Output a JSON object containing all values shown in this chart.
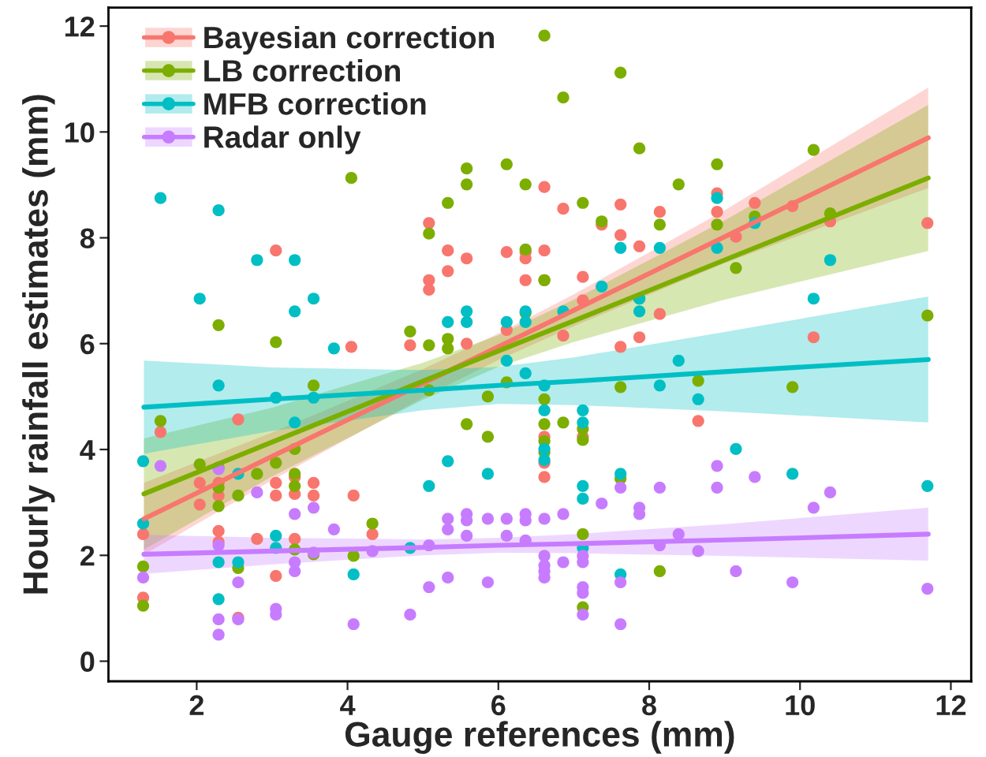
{
  "chart_data": {
    "type": "scatter",
    "xlabel": "Gauge references (mm)",
    "ylabel": "Hourly rainfall estimates (mm)",
    "xlim": [
      0.83,
      12.27
    ],
    "ylim": [
      -0.38,
      12.35
    ],
    "xticks": [
      2,
      4,
      6,
      8,
      10,
      12
    ],
    "yticks": [
      0,
      2,
      4,
      6,
      8,
      10,
      12
    ],
    "grid": false,
    "legend": "top left",
    "marker": "circle",
    "series": [
      {
        "name": "Bayesian correction",
        "color": "#f8766d",
        "x": [
          3.05,
          4.05,
          5.08,
          5.08,
          5.08,
          5.33,
          5.33,
          5.58,
          6.11,
          6.36,
          6.36,
          6.36,
          6.61,
          6.61,
          6.61,
          6.86,
          7.12,
          7.37,
          7.62,
          7.62,
          7.87,
          8.14,
          8.14,
          7.87,
          7.12,
          6.86,
          6.11,
          5.58,
          8.9,
          8.9,
          9.15,
          9.4,
          9.9,
          10.4,
          11.69,
          10.18,
          1.52,
          2.55,
          2.04,
          2.29,
          2.04,
          2.29,
          3.05,
          3.05,
          3.3,
          3.3,
          3.55,
          3.55,
          4.08,
          1.29,
          2.29,
          2.29,
          2.8,
          3.3,
          4.33,
          3.05,
          1.29,
          2.55,
          4.83,
          7.62,
          6.61,
          6.61,
          6.61,
          7.12,
          8.65
        ],
        "values": [
          7.76,
          5.94,
          8.28,
          7.2,
          7.02,
          7.76,
          7.37,
          7.61,
          7.73,
          7.73,
          7.61,
          7.2,
          8.96,
          7.76,
          7.2,
          8.55,
          7.26,
          8.25,
          8.63,
          8.05,
          7.84,
          8.49,
          6.56,
          6.12,
          6.82,
          6.15,
          6.26,
          6.0,
          8.84,
          8.49,
          8.02,
          8.66,
          8.6,
          8.31,
          8.28,
          6.12,
          4.33,
          4.57,
          3.37,
          3.37,
          2.96,
          3.13,
          3.37,
          3.13,
          3.48,
          3.16,
          3.37,
          3.13,
          3.13,
          2.4,
          2.46,
          2.25,
          2.31,
          2.31,
          2.4,
          1.61,
          1.2,
          0.82,
          5.97,
          5.94,
          4.24,
          3.75,
          3.48,
          4.24,
          4.54
        ]
      },
      {
        "name": "LB correction",
        "color": "#7cae00",
        "x": [
          8.9,
          10.18,
          11.69,
          9.15,
          8.9,
          9.4,
          10.4,
          6.61,
          7.62,
          6.86,
          7.87,
          5.58,
          5.58,
          6.11,
          6.36,
          5.33,
          7.12,
          8.39,
          5.08,
          7.37,
          8.14,
          6.36,
          6.61,
          4.83,
          5.08,
          5.33,
          6.36,
          7.87,
          4.05,
          2.29,
          3.05,
          1.52,
          3.55,
          3.3,
          2.04,
          2.29,
          3.05,
          2.8,
          2.29,
          3.3,
          3.3,
          2.55,
          2.29,
          4.33,
          1.29,
          1.29,
          2.55,
          3.3,
          3.55,
          4.08,
          5.08,
          6.11,
          7.62,
          5.86,
          5.58,
          5.86,
          6.61,
          6.61,
          6.61,
          6.61,
          6.86,
          7.12,
          7.12,
          7.62,
          7.12,
          8.14,
          7.12,
          5.33,
          8.65,
          9.9
        ],
        "values": [
          9.39,
          9.66,
          6.53,
          7.43,
          8.25,
          8.4,
          8.46,
          11.82,
          11.12,
          10.65,
          9.69,
          9.31,
          9.01,
          9.39,
          9.01,
          8.66,
          8.66,
          9.01,
          8.08,
          8.31,
          8.25,
          7.78,
          7.2,
          6.23,
          5.97,
          6.09,
          6.58,
          6.85,
          9.13,
          6.35,
          6.03,
          4.54,
          5.21,
          4.01,
          3.72,
          3.66,
          3.75,
          3.54,
          3.28,
          3.54,
          3.31,
          3.13,
          2.93,
          2.6,
          1.79,
          1.05,
          1.76,
          2.11,
          2.02,
          1.99,
          5.12,
          5.27,
          5.18,
          5.0,
          4.48,
          4.24,
          4.95,
          4.48,
          4.16,
          3.95,
          4.51,
          4.39,
          4.18,
          3.45,
          2.4,
          1.7,
          1.02,
          5.91,
          5.3,
          5.18
        ]
      },
      {
        "name": "MFB correction",
        "color": "#00bfc4",
        "x": [
          1.52,
          2.29,
          2.8,
          3.3,
          2.04,
          3.3,
          3.55,
          7.62,
          8.14,
          7.37,
          7.87,
          7.87,
          5.58,
          6.36,
          5.33,
          5.58,
          6.11,
          6.36,
          6.86,
          8.9,
          8.9,
          9.4,
          10.4,
          10.18,
          3.82,
          2.29,
          3.05,
          3.55,
          3.3,
          1.29,
          1.29,
          2.55,
          3.05,
          2.29,
          2.55,
          3.05,
          4.08,
          2.29,
          6.11,
          6.36,
          8.39,
          8.14,
          6.61,
          6.61,
          6.61,
          6.61,
          7.12,
          7.12,
          5.33,
          5.08,
          5.86,
          7.12,
          7.12,
          7.62,
          4.83,
          7.12,
          7.62,
          8.65,
          9.15,
          9.9,
          11.69
        ],
        "values": [
          8.75,
          8.52,
          7.58,
          7.58,
          6.85,
          6.61,
          6.85,
          7.81,
          7.81,
          7.08,
          6.85,
          6.61,
          6.61,
          6.61,
          6.41,
          6.41,
          6.41,
          6.41,
          6.61,
          8.75,
          7.81,
          8.28,
          7.58,
          6.85,
          5.91,
          5.21,
          4.98,
          4.98,
          4.51,
          3.78,
          2.6,
          3.54,
          2.37,
          1.87,
          1.87,
          2.14,
          1.64,
          1.17,
          5.68,
          5.44,
          5.68,
          5.21,
          5.21,
          4.74,
          3.8,
          4.01,
          4.74,
          4.51,
          3.78,
          3.31,
          3.54,
          3.31,
          3.07,
          3.54,
          2.14,
          2.14,
          1.64,
          4.95,
          4.01,
          3.54,
          3.31
        ]
      },
      {
        "name": "Radar only",
        "color": "#c77cff",
        "x": [
          1.29,
          1.52,
          2.29,
          2.8,
          3.3,
          3.55,
          3.82,
          2.29,
          3.3,
          3.3,
          2.55,
          3.05,
          3.05,
          2.29,
          2.55,
          2.29,
          4.08,
          4.33,
          3.55,
          5.33,
          5.33,
          5.58,
          5.58,
          5.86,
          6.11,
          6.36,
          6.36,
          6.61,
          6.86,
          7.37,
          7.62,
          8.14,
          7.87,
          7.87,
          5.58,
          6.11,
          6.36,
          5.08,
          6.61,
          6.61,
          6.61,
          6.61,
          6.86,
          7.12,
          7.12,
          5.33,
          5.08,
          5.86,
          4.83,
          7.12,
          7.12,
          7.12,
          7.62,
          7.62,
          8.14,
          8.39,
          8.9,
          8.9,
          9.4,
          10.4,
          10.18,
          8.65,
          9.15,
          9.9,
          11.69
        ],
        "values": [
          1.58,
          3.69,
          3.63,
          3.19,
          2.78,
          2.9,
          2.49,
          2.19,
          1.87,
          1.7,
          1.49,
          0.99,
          0.88,
          0.79,
          0.79,
          0.5,
          0.7,
          2.08,
          2.05,
          2.69,
          2.49,
          2.78,
          2.66,
          2.69,
          2.69,
          2.78,
          2.66,
          2.69,
          2.78,
          2.98,
          3.28,
          3.28,
          2.9,
          2.78,
          2.37,
          2.37,
          2.28,
          2.19,
          1.99,
          1.81,
          1.7,
          1.58,
          1.87,
          1.99,
          1.87,
          1.58,
          1.4,
          1.49,
          0.88,
          1.4,
          1.29,
          0.88,
          1.49,
          0.7,
          2.19,
          2.4,
          3.69,
          3.28,
          3.48,
          3.19,
          2.9,
          2.08,
          1.7,
          1.49,
          1.37
        ]
      },
      {
        "type": "line",
        "marker": "none",
        "color": "#f8766d",
        "x": [
          1.3,
          3,
          5,
          6,
          7,
          9,
          11.7
        ],
        "values": [
          2.69,
          3.87,
          5.25,
          5.94,
          6.63,
          8.02,
          9.89
        ],
        "lower": [
          2.01,
          3.42,
          4.98,
          5.69,
          6.33,
          7.52,
          8.94
        ],
        "upper": [
          3.37,
          4.32,
          5.52,
          6.19,
          6.93,
          8.52,
          10.84
        ]
      },
      {
        "type": "line",
        "marker": "none",
        "color": "#7cae00",
        "x": [
          1.3,
          3,
          5,
          6,
          7,
          9,
          11.7
        ],
        "values": [
          3.16,
          4.14,
          5.29,
          5.86,
          6.43,
          7.58,
          9.13
        ],
        "lower": [
          2.11,
          3.49,
          4.94,
          5.56,
          6.03,
          6.83,
          7.75
        ],
        "upper": [
          4.21,
          4.79,
          5.64,
          6.16,
          6.83,
          8.33,
          10.51
        ]
      },
      {
        "type": "line",
        "marker": "none",
        "color": "#00bfc4",
        "x": [
          1.3,
          3,
          5,
          6,
          7,
          9,
          11.7
        ],
        "values": [
          4.8,
          4.95,
          5.12,
          5.21,
          5.29,
          5.47,
          5.7
        ],
        "lower": [
          3.92,
          4.35,
          4.74,
          4.86,
          4.84,
          4.72,
          4.51
        ],
        "upper": [
          5.68,
          5.55,
          5.5,
          5.56,
          5.74,
          6.22,
          6.89
        ]
      },
      {
        "type": "line",
        "marker": "none",
        "color": "#c77cff",
        "x": [
          1.3,
          3,
          5,
          6,
          7,
          9,
          11.7
        ],
        "values": [
          2.02,
          2.08,
          2.15,
          2.19,
          2.22,
          2.29,
          2.4
        ],
        "lower": [
          1.65,
          1.83,
          2.0,
          2.05,
          2.04,
          1.99,
          1.9
        ],
        "upper": [
          2.39,
          2.33,
          2.3,
          2.33,
          2.4,
          2.59,
          2.9
        ]
      }
    ]
  }
}
